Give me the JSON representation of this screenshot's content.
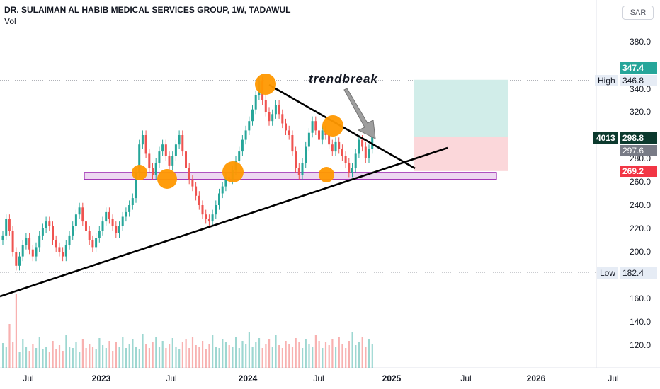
{
  "header": {
    "title": "DR. SULAIMAN AL HABIB MEDICAL SERVICES GROUP, 1W, TADAWUL",
    "volume_label": "Vol"
  },
  "currency_button": "SAR",
  "annotation": "trendbreak",
  "price_tags": {
    "target_value": "347.4",
    "high_label": "High",
    "high_value": "346.8",
    "volume_value": "4013",
    "last_value": "298.8",
    "prev_close_value": "297.6",
    "stop_value": "269.2",
    "low_label": "Low",
    "low_value": "182.4"
  },
  "colors": {
    "up": "#26a69a",
    "down": "#ef5350",
    "zone_fill": "#e1bee7",
    "zone_border": "#9c27b0",
    "target_fill": "#d1ede9",
    "stop_fill": "#fbd7da",
    "marker": "#ff9800",
    "tag_green": "#26a69a",
    "tag_red": "#f23645",
    "tag_dark": "#0c3a2e",
    "tag_gray": "#787b86"
  },
  "chart_data": {
    "type": "candlestick",
    "title": "DR. SULAIMAN AL HABIB MEDICAL SERVICES GROUP, 1W, TADAWUL",
    "ylim": [
      100.0,
      396.0
    ],
    "y_ticks": [
      "380.0",
      "340.0",
      "320.0",
      "300.0",
      "280.0",
      "260.0",
      "240.0",
      "220.0",
      "200.0",
      "160.0",
      "140.0",
      "120.0"
    ],
    "x_ticks": [
      "Jul",
      "2023",
      "Jul",
      "2024",
      "Jul",
      "2025",
      "Jul",
      "2026",
      "Jul"
    ],
    "series": [
      {
        "points": [
          [
            210,
            214
          ],
          [
            214,
            228
          ],
          [
            228,
            218
          ],
          [
            218,
            200
          ],
          [
            200,
            188
          ],
          [
            188,
            196
          ],
          [
            196,
            206
          ],
          [
            206,
            212
          ],
          [
            212,
            202
          ],
          [
            202,
            196
          ],
          [
            196,
            204
          ],
          [
            204,
            214
          ],
          [
            214,
            220
          ],
          [
            220,
            226
          ],
          [
            226,
            222
          ],
          [
            222,
            210
          ],
          [
            210,
            204
          ],
          [
            204,
            200
          ],
          [
            200,
            196
          ],
          [
            196,
            206
          ],
          [
            206,
            214
          ],
          [
            214,
            222
          ],
          [
            222,
            232
          ],
          [
            232,
            238
          ],
          [
            238,
            226
          ],
          [
            226,
            218
          ],
          [
            218,
            210
          ],
          [
            210,
            204
          ],
          [
            204,
            212
          ],
          [
            212,
            218
          ],
          [
            218,
            226
          ],
          [
            226,
            234
          ],
          [
            234,
            228
          ],
          [
            228,
            222
          ],
          [
            222,
            216
          ],
          [
            216,
            222
          ],
          [
            222,
            230
          ],
          [
            230,
            234
          ],
          [
            234,
            240
          ],
          [
            240,
            246
          ],
          [
            246,
            268
          ],
          [
            268,
            292
          ],
          [
            292,
            300
          ],
          [
            300,
            284
          ],
          [
            284,
            272
          ],
          [
            272,
            266
          ],
          [
            266,
            276
          ],
          [
            276,
            286
          ],
          [
            286,
            292
          ],
          [
            292,
            282
          ],
          [
            282,
            274
          ],
          [
            274,
            282
          ],
          [
            282,
            292
          ],
          [
            292,
            300
          ],
          [
            300,
            286
          ],
          [
            286,
            272
          ],
          [
            272,
            262
          ],
          [
            262,
            256
          ],
          [
            256,
            248
          ],
          [
            248,
            240
          ],
          [
            240,
            232
          ],
          [
            232,
            228
          ],
          [
            228,
            226
          ],
          [
            226,
            232
          ],
          [
            232,
            240
          ],
          [
            240,
            250
          ],
          [
            250,
            256
          ],
          [
            256,
            264
          ],
          [
            264,
            262
          ],
          [
            262,
            270
          ],
          [
            270,
            278
          ],
          [
            278,
            286
          ],
          [
            286,
            296
          ],
          [
            296,
            304
          ],
          [
            304,
            312
          ],
          [
            312,
            322
          ],
          [
            322,
            334
          ],
          [
            334,
            346
          ],
          [
            346,
            330
          ],
          [
            330,
            320
          ],
          [
            320,
            312
          ],
          [
            312,
            318
          ],
          [
            318,
            326
          ],
          [
            326,
            318
          ],
          [
            318,
            310
          ],
          [
            310,
            304
          ],
          [
            304,
            300
          ],
          [
            300,
            286
          ],
          [
            286,
            272
          ],
          [
            272,
            266
          ],
          [
            266,
            276
          ],
          [
            276,
            290
          ],
          [
            290,
            302
          ],
          [
            302,
            312
          ],
          [
            312,
            304
          ],
          [
            304,
            296
          ],
          [
            296,
            304
          ],
          [
            304,
            300
          ],
          [
            300,
            292
          ],
          [
            292,
            286
          ],
          [
            286,
            294
          ],
          [
            294,
            288
          ],
          [
            288,
            282
          ],
          [
            282,
            276
          ],
          [
            276,
            268
          ],
          [
            268,
            272
          ],
          [
            272,
            284
          ],
          [
            284,
            296
          ],
          [
            296,
            290
          ],
          [
            290,
            280
          ],
          [
            280,
            288
          ],
          [
            288,
            298.8
          ]
        ]
      }
    ],
    "volume": [
      35,
      30,
      62,
      36,
      28,
      22,
      40,
      30,
      24,
      34,
      28,
      44,
      26,
      30,
      22,
      38,
      26,
      32,
      24,
      46,
      30,
      28,
      36,
      22,
      40,
      28,
      34,
      30,
      26,
      42,
      32,
      28,
      38,
      24,
      36,
      30,
      44,
      28,
      34,
      40,
      30,
      26,
      48,
      34,
      28,
      36,
      44,
      30,
      38,
      28,
      34,
      42,
      30,
      26,
      36,
      40,
      28,
      44,
      32,
      30,
      38,
      26,
      34,
      46,
      30,
      28,
      40,
      36,
      32,
      30,
      44,
      28,
      38,
      34,
      50,
      30,
      36,
      42,
      28,
      34,
      40,
      30,
      46,
      32,
      28,
      38,
      34,
      30,
      42,
      36,
      28,
      40,
      34,
      30,
      46,
      38,
      28,
      36,
      32,
      40,
      30,
      44,
      34,
      28,
      38,
      50,
      32,
      36,
      44,
      30,
      40,
      34
    ],
    "annotations": {
      "support_zone": [
        262.0,
        268.0
      ],
      "target_zone": [
        298.8,
        347.4
      ],
      "stop_zone": [
        269.2,
        298.8
      ],
      "high": 346.8,
      "low": 182.4
    }
  }
}
